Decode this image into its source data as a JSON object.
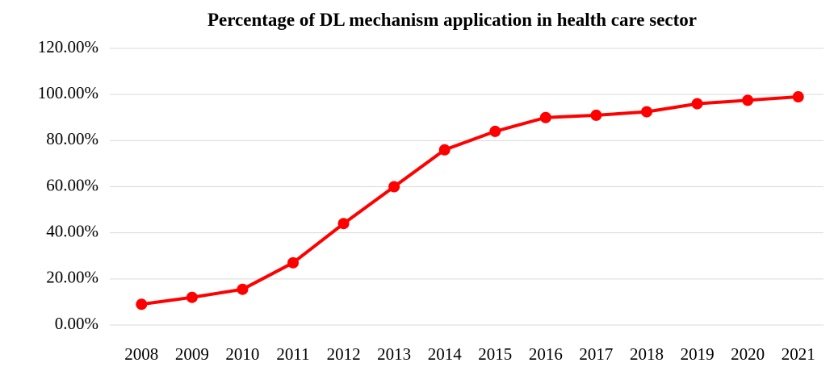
{
  "chart_data": {
    "type": "line",
    "title": "Percentage of DL mechanism application in health care sector",
    "categories": [
      "2008",
      "2009",
      "2010",
      "2011",
      "2012",
      "2013",
      "2014",
      "2015",
      "2016",
      "2017",
      "2018",
      "2019",
      "2020",
      "2021"
    ],
    "values": [
      9,
      12,
      15.5,
      27,
      44,
      60,
      76,
      84,
      90,
      91,
      92.5,
      96,
      97.5,
      99
    ],
    "color": "#ff0000",
    "ylim": [
      0,
      120
    ],
    "yticks": [
      {
        "value": 0,
        "label": "0.00%"
      },
      {
        "value": 20,
        "label": "20.00%"
      },
      {
        "value": 40,
        "label": "40.00%"
      },
      {
        "value": 60,
        "label": "60.00%"
      },
      {
        "value": 80,
        "label": "80.00%"
      },
      {
        "value": 100,
        "label": "100.00%"
      },
      {
        "value": 120,
        "label": "120.00%"
      }
    ],
    "grid": true
  }
}
